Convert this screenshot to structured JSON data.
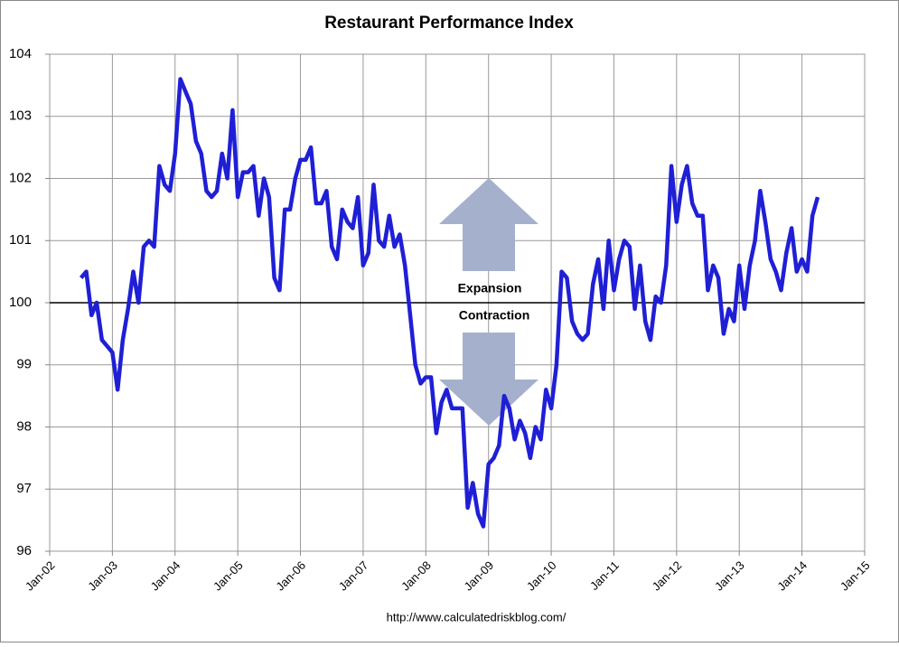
{
  "chart_data": {
    "type": "line",
    "title": "Restaurant Performance Index",
    "series": [
      {
        "name": "Restaurant Performance Index",
        "color": "#1f1fd6",
        "values": [
          100.4,
          100.5,
          99.8,
          100.0,
          99.4,
          99.3,
          99.2,
          98.6,
          99.4,
          99.9,
          100.5,
          100.0,
          100.9,
          101.0,
          100.9,
          102.2,
          101.9,
          101.8,
          102.4,
          103.6,
          103.4,
          103.2,
          102.6,
          102.4,
          101.8,
          101.7,
          101.8,
          102.4,
          102.0,
          103.1,
          101.7,
          102.1,
          102.1,
          102.2,
          101.4,
          102.0,
          101.7,
          100.4,
          100.2,
          101.5,
          101.5,
          102.0,
          102.3,
          102.3,
          102.5,
          101.6,
          101.6,
          101.8,
          100.9,
          100.7,
          101.5,
          101.3,
          101.2,
          101.7,
          100.6,
          100.8,
          101.9,
          101.0,
          100.9,
          101.4,
          100.9,
          101.1,
          100.6,
          99.8,
          99.0,
          98.7,
          98.8,
          98.8,
          97.9,
          98.4,
          98.6,
          98.3,
          98.3,
          98.3,
          96.7,
          97.1,
          96.6,
          96.4,
          97.4,
          97.5,
          97.7,
          98.5,
          98.3,
          97.8,
          98.1,
          97.9,
          97.5,
          98.0,
          97.8,
          98.6,
          98.3,
          99.0,
          100.5,
          100.4,
          99.7,
          99.5,
          99.4,
          99.5,
          100.3,
          100.7,
          99.9,
          101.0,
          100.2,
          100.7,
          101.0,
          100.9,
          99.9,
          100.6,
          99.7,
          99.4,
          100.1,
          100.0,
          100.6,
          102.2,
          101.3,
          101.9,
          102.2,
          101.6,
          101.4,
          101.4,
          100.2,
          100.6,
          100.4,
          99.5,
          99.9,
          99.7,
          100.6,
          99.9,
          100.6,
          101.0,
          101.8,
          101.3,
          100.7,
          100.5,
          100.2,
          100.8,
          101.2,
          100.5,
          100.7,
          100.5,
          101.4,
          101.7
        ]
      }
    ],
    "x": [
      "2002-07",
      "2002-08",
      "2002-09",
      "2002-10",
      "2002-11",
      "2002-12",
      "2003-01",
      "2003-02",
      "2003-03",
      "2003-04",
      "2003-05",
      "2003-06",
      "2003-07",
      "2003-08",
      "2003-09",
      "2003-10",
      "2003-11",
      "2003-12",
      "2004-01",
      "2004-02",
      "2004-03",
      "2004-04",
      "2004-05",
      "2004-06",
      "2004-07",
      "2004-08",
      "2004-09",
      "2004-10",
      "2004-11",
      "2004-12",
      "2005-01",
      "2005-02",
      "2005-03",
      "2005-04",
      "2005-05",
      "2005-06",
      "2005-07",
      "2005-08",
      "2005-09",
      "2005-10",
      "2005-11",
      "2005-12",
      "2006-01",
      "2006-02",
      "2006-03",
      "2006-04",
      "2006-05",
      "2006-06",
      "2006-07",
      "2006-08",
      "2006-09",
      "2006-10",
      "2006-11",
      "2006-12",
      "2007-01",
      "2007-02",
      "2007-03",
      "2007-04",
      "2007-05",
      "2007-06",
      "2007-07",
      "2007-08",
      "2007-09",
      "2007-10",
      "2007-11",
      "2007-12",
      "2008-01",
      "2008-02",
      "2008-03",
      "2008-04",
      "2008-05",
      "2008-06",
      "2008-07",
      "2008-08",
      "2008-09",
      "2008-10",
      "2008-11",
      "2008-12",
      "2009-01",
      "2009-02",
      "2009-03",
      "2009-04",
      "2009-05",
      "2009-06",
      "2009-07",
      "2009-08",
      "2009-09",
      "2009-10",
      "2009-11",
      "2009-12",
      "2010-01",
      "2010-02",
      "2010-03",
      "2010-04",
      "2010-05",
      "2010-06",
      "2010-07",
      "2010-08",
      "2010-09",
      "2010-10",
      "2010-11",
      "2010-12",
      "2011-01",
      "2011-02",
      "2011-03",
      "2011-04",
      "2011-05",
      "2011-06",
      "2011-07",
      "2011-08",
      "2011-09",
      "2011-10",
      "2011-11",
      "2011-12",
      "2012-01",
      "2012-02",
      "2012-03",
      "2012-04",
      "2012-05",
      "2012-06",
      "2012-07",
      "2012-08",
      "2012-09",
      "2012-10",
      "2012-11",
      "2012-12",
      "2013-01",
      "2013-02",
      "2013-03",
      "2013-04",
      "2013-05",
      "2013-06",
      "2013-07",
      "2013-08",
      "2013-09",
      "2013-10",
      "2013-11",
      "2013-12",
      "2014-01",
      "2014-02",
      "2014-03",
      "2014-04"
    ],
    "xlim": [
      "2002-01",
      "2015-01"
    ],
    "xticks": [
      {
        "value": "2002-01",
        "label": "Jan-02"
      },
      {
        "value": "2003-01",
        "label": "Jan-03"
      },
      {
        "value": "2004-01",
        "label": "Jan-04"
      },
      {
        "value": "2005-01",
        "label": "Jan-05"
      },
      {
        "value": "2006-01",
        "label": "Jan-06"
      },
      {
        "value": "2007-01",
        "label": "Jan-07"
      },
      {
        "value": "2008-01",
        "label": "Jan-08"
      },
      {
        "value": "2009-01",
        "label": "Jan-09"
      },
      {
        "value": "2010-01",
        "label": "Jan-10"
      },
      {
        "value": "2011-01",
        "label": "Jan-11"
      },
      {
        "value": "2012-01",
        "label": "Jan-12"
      },
      {
        "value": "2013-01",
        "label": "Jan-13"
      },
      {
        "value": "2014-01",
        "label": "Jan-14"
      },
      {
        "value": "2015-01",
        "label": "Jan-15"
      }
    ],
    "ylim": [
      96,
      104
    ],
    "yticks": [
      96,
      97,
      98,
      99,
      100,
      101,
      102,
      103,
      104
    ],
    "grid": true,
    "reference_line": 100,
    "annotations": [
      "Expansion",
      "Contraction"
    ],
    "source": "http://www.calculatedriskblog.com/"
  }
}
